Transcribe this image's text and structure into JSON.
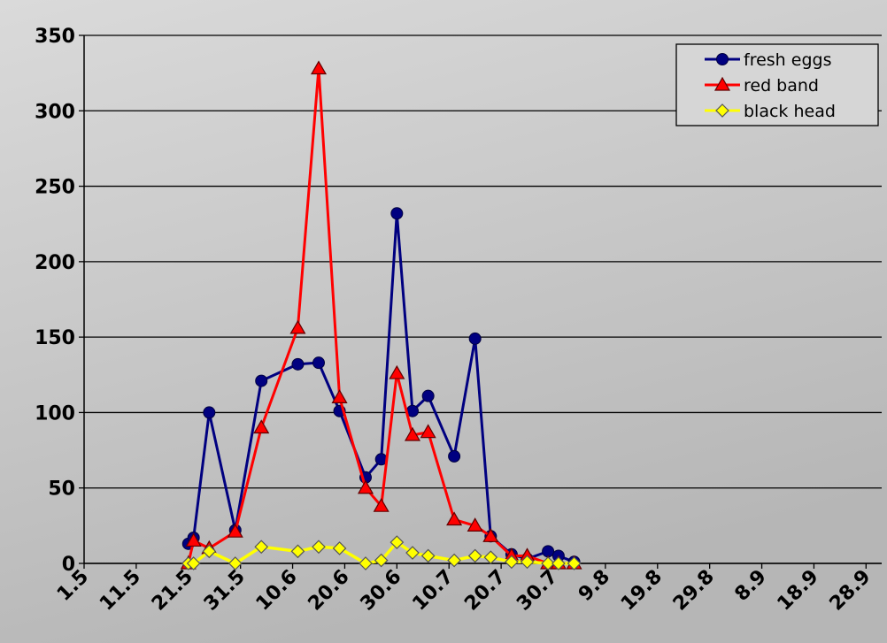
{
  "chart_data": {
    "type": "line",
    "title": "",
    "xlabel": "",
    "ylabel": "",
    "ylim": [
      0,
      350
    ],
    "yticks": [
      0,
      50,
      100,
      150,
      200,
      250,
      300,
      350
    ],
    "x_axis_type": "date (day.month)",
    "xlim_days_from_1_may": [
      0,
      153
    ],
    "x_ticks": [
      {
        "label": "1.5",
        "day": 0
      },
      {
        "label": "11.5",
        "day": 10
      },
      {
        "label": "21.5",
        "day": 20
      },
      {
        "label": "31.5",
        "day": 30
      },
      {
        "label": "10.6",
        "day": 40
      },
      {
        "label": "20.6",
        "day": 50
      },
      {
        "label": "30.6",
        "day": 60
      },
      {
        "label": "10.7",
        "day": 70
      },
      {
        "label": "20.7",
        "day": 80
      },
      {
        "label": "30.7",
        "day": 90
      },
      {
        "label": "9.8",
        "day": 100
      },
      {
        "label": "19.8",
        "day": 110
      },
      {
        "label": "29.8",
        "day": 120
      },
      {
        "label": "8.9",
        "day": 130
      },
      {
        "label": "18.9",
        "day": 140
      },
      {
        "label": "28.9",
        "day": 150
      }
    ],
    "grid": "horizontal",
    "legend": "top-right",
    "series": [
      {
        "name": "fresh eggs",
        "color": "#000080",
        "marker": "circle",
        "points": [
          [
            20,
            13
          ],
          [
            21,
            17
          ],
          [
            24,
            100
          ],
          [
            29,
            22
          ],
          [
            34,
            121
          ],
          [
            41,
            132
          ],
          [
            45,
            133
          ],
          [
            49,
            101
          ],
          [
            54,
            57
          ],
          [
            57,
            69
          ],
          [
            60,
            232
          ],
          [
            63,
            101
          ],
          [
            66,
            111
          ],
          [
            71,
            71
          ],
          [
            75,
            149
          ],
          [
            78,
            18
          ],
          [
            82,
            6
          ],
          [
            85,
            3
          ],
          [
            89,
            8
          ],
          [
            91,
            5
          ],
          [
            94,
            1
          ]
        ]
      },
      {
        "name": "red band",
        "color": "#ff0000",
        "marker": "triangle",
        "points": [
          [
            20,
            0
          ],
          [
            21,
            15
          ],
          [
            24,
            10
          ],
          [
            29,
            21
          ],
          [
            34,
            90
          ],
          [
            41,
            156
          ],
          [
            45,
            328
          ],
          [
            49,
            110
          ],
          [
            54,
            50
          ],
          [
            57,
            38
          ],
          [
            60,
            126
          ],
          [
            63,
            85
          ],
          [
            66,
            87
          ],
          [
            71,
            29
          ],
          [
            75,
            25
          ],
          [
            78,
            18
          ],
          [
            82,
            5
          ],
          [
            85,
            5
          ],
          [
            89,
            0
          ],
          [
            91,
            0
          ],
          [
            94,
            0
          ]
        ]
      },
      {
        "name": "black head",
        "color": "#ffff00",
        "marker": "diamond",
        "points": [
          [
            20,
            0
          ],
          [
            21,
            0
          ],
          [
            24,
            8
          ],
          [
            29,
            0
          ],
          [
            34,
            11
          ],
          [
            41,
            8
          ],
          [
            45,
            11
          ],
          [
            49,
            10
          ],
          [
            54,
            0
          ],
          [
            57,
            2
          ],
          [
            60,
            14
          ],
          [
            63,
            7
          ],
          [
            66,
            5
          ],
          [
            71,
            2
          ],
          [
            75,
            5
          ],
          [
            78,
            4
          ],
          [
            82,
            1
          ],
          [
            85,
            1
          ],
          [
            89,
            0
          ],
          [
            91,
            0
          ],
          [
            94,
            0
          ]
        ]
      }
    ]
  }
}
